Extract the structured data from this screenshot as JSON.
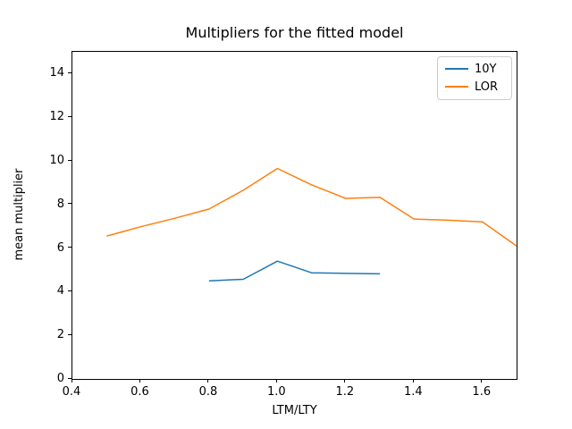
{
  "figure": {
    "background_color": "#ffffff",
    "spine_color": "#000000",
    "text_color": "#000000"
  },
  "chart_data": {
    "type": "line",
    "title": "Multipliers for the fitted model",
    "xlabel": "LTM/LTY",
    "ylabel": "mean multiplier",
    "xlim": [
      0.4,
      1.7
    ],
    "ylim": [
      0,
      15
    ],
    "grid": false,
    "xticks": {
      "values": [
        0.4,
        0.6,
        0.8,
        1.0,
        1.2,
        1.4,
        1.6
      ],
      "labels": [
        "0.4",
        "0.6",
        "0.8",
        "1.0",
        "1.2",
        "1.4",
        "1.6"
      ]
    },
    "yticks": {
      "values": [
        0,
        2,
        4,
        6,
        8,
        10,
        12,
        14
      ],
      "labels": [
        "0",
        "2",
        "4",
        "6",
        "8",
        "10",
        "12",
        "14"
      ]
    },
    "legend": {
      "position": "upper right",
      "entries": [
        "10Y",
        "LOR"
      ],
      "edge_color": "#cccccc"
    },
    "series": [
      {
        "name": "10Y",
        "color": "#1f77b4",
        "x": [
          0.8,
          0.9,
          1.0,
          1.1,
          1.2,
          1.3
        ],
        "y": [
          4.5,
          4.57,
          5.4,
          4.87,
          4.84,
          4.82
        ]
      },
      {
        "name": "LOR",
        "color": "#ff7f0e",
        "x": [
          0.5,
          0.6,
          0.7,
          0.8,
          0.9,
          1.0,
          1.1,
          1.2,
          1.3,
          1.4,
          1.5,
          1.6,
          1.7
        ],
        "y": [
          6.55,
          6.98,
          7.37,
          7.79,
          8.65,
          9.65,
          8.9,
          8.28,
          8.33,
          7.33,
          7.28,
          7.2,
          6.1
        ]
      }
    ]
  }
}
